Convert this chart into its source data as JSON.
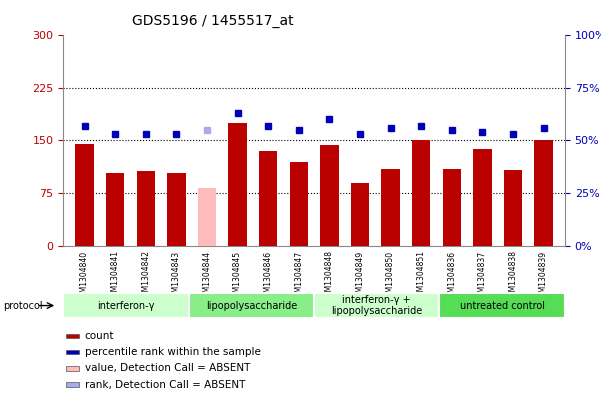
{
  "title": "GDS5196 / 1455517_at",
  "samples": [
    "GSM1304840",
    "GSM1304841",
    "GSM1304842",
    "GSM1304843",
    "GSM1304844",
    "GSM1304845",
    "GSM1304846",
    "GSM1304847",
    "GSM1304848",
    "GSM1304849",
    "GSM1304850",
    "GSM1304851",
    "GSM1304836",
    "GSM1304837",
    "GSM1304838",
    "GSM1304839"
  ],
  "counts": [
    145,
    103,
    107,
    103,
    82,
    175,
    135,
    120,
    143,
    90,
    110,
    150,
    110,
    138,
    108,
    150
  ],
  "absent_count_idx": 4,
  "ranks_pct": [
    57,
    53,
    53,
    53,
    55,
    63,
    57,
    55,
    60,
    53,
    56,
    57,
    55,
    54,
    53,
    56
  ],
  "absent_rank_idx": 4,
  "bar_color": "#bb0000",
  "absent_bar_color": "#ffbbbb",
  "dot_color": "#0000bb",
  "absent_dot_color": "#aaaaee",
  "ylim_left": [
    0,
    300
  ],
  "ylim_right": [
    0,
    100
  ],
  "yticks_left": [
    0,
    75,
    150,
    225,
    300
  ],
  "yticks_right": [
    0,
    25,
    50,
    75,
    100
  ],
  "ytick_labels_left": [
    "0",
    "75",
    "150",
    "225",
    "300"
  ],
  "ytick_labels_right": [
    "0%",
    "25%",
    "50%",
    "75%",
    "100%"
  ],
  "hlines": [
    75,
    150,
    225
  ],
  "groups": [
    {
      "label": "interferon-γ",
      "start": 0,
      "end": 4,
      "color": "#ccffcc"
    },
    {
      "label": "lipopolysaccharide",
      "start": 4,
      "end": 8,
      "color": "#88ee88"
    },
    {
      "label": "interferon-γ +\nlipopolysaccharide",
      "start": 8,
      "end": 12,
      "color": "#ccffcc"
    },
    {
      "label": "untreated control",
      "start": 12,
      "end": 16,
      "color": "#55dd55"
    }
  ],
  "legend_items": [
    {
      "label": "count",
      "color": "#bb0000"
    },
    {
      "label": "percentile rank within the sample",
      "color": "#0000bb"
    },
    {
      "label": "value, Detection Call = ABSENT",
      "color": "#ffbbbb"
    },
    {
      "label": "rank, Detection Call = ABSENT",
      "color": "#aaaaee"
    }
  ],
  "plot_bg": "#ffffff",
  "fig_bg": "#ffffff",
  "tick_area_bg": "#dddddd"
}
